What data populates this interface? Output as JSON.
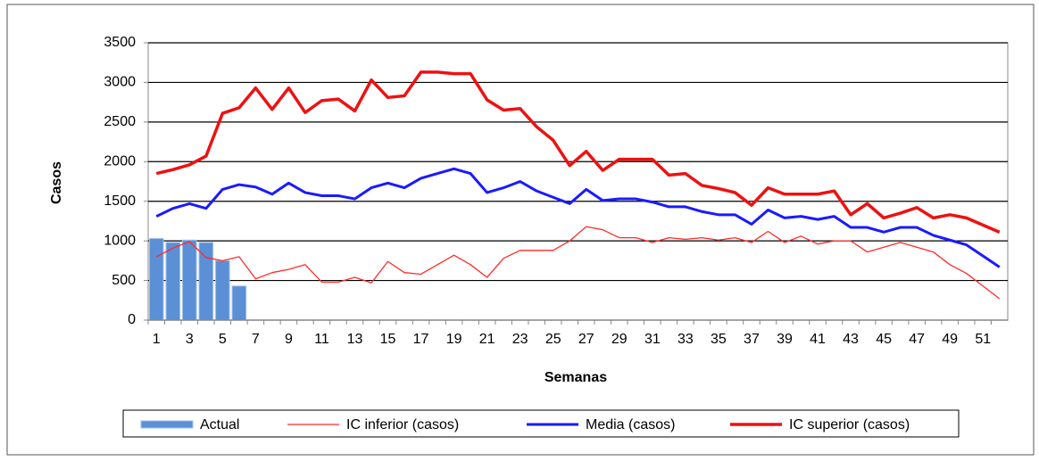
{
  "chart_data": {
    "type": "combo",
    "x_label": "Semanas",
    "y_label": "Casos",
    "categories": [
      "1",
      null,
      "3",
      null,
      "5",
      null,
      "7",
      null,
      "9",
      null,
      "11",
      null,
      "13",
      null,
      "15",
      null,
      "17",
      null,
      "19",
      null,
      "21",
      null,
      "23",
      null,
      "25",
      null,
      "27",
      null,
      "29",
      null,
      "31",
      null,
      "33",
      null,
      "35",
      null,
      "37",
      null,
      "39",
      null,
      "41",
      null,
      "43",
      null,
      "45",
      null,
      "47",
      null,
      "49",
      null,
      "51",
      null
    ],
    "ylim": [
      0,
      3500
    ],
    "yticks": [
      0,
      500,
      1000,
      1500,
      2000,
      2500,
      3000,
      3500
    ],
    "grid": true,
    "legend": "bottom",
    "series": [
      {
        "name": "Actual",
        "type": "bar",
        "color": "#5b8fd6",
        "values": [
          1030,
          980,
          1010,
          980,
          750,
          430,
          null,
          null,
          null,
          null,
          null,
          null,
          null,
          null,
          null,
          null,
          null,
          null,
          null,
          null,
          null,
          null,
          null,
          null,
          null,
          null,
          null,
          null,
          null,
          null,
          null,
          null,
          null,
          null,
          null,
          null,
          null,
          null,
          null,
          null,
          null,
          null,
          null,
          null,
          null,
          null,
          null,
          null,
          null,
          null,
          null,
          null
        ]
      },
      {
        "name": "IC inferior (casos)",
        "type": "line",
        "color": "#ff2a2a",
        "width": 1.3,
        "values": [
          800,
          910,
          990,
          790,
          750,
          800,
          520,
          600,
          640,
          700,
          480,
          480,
          540,
          470,
          740,
          600,
          580,
          700,
          820,
          700,
          540,
          780,
          880,
          880,
          880,
          1000,
          1180,
          1140,
          1040,
          1040,
          980,
          1040,
          1020,
          1040,
          1010,
          1040,
          980,
          1120,
          980,
          1060,
          960,
          1000,
          1000,
          860,
          920,
          980,
          920,
          860,
          700,
          590,
          430,
          270
        ]
      },
      {
        "name": "Media (casos)",
        "type": "line",
        "color": "#1a1aff",
        "width": 3,
        "values": [
          1310,
          1410,
          1470,
          1410,
          1650,
          1710,
          1680,
          1590,
          1730,
          1610,
          1570,
          1570,
          1530,
          1670,
          1730,
          1670,
          1790,
          1850,
          1910,
          1850,
          1610,
          1670,
          1750,
          1630,
          1550,
          1470,
          1650,
          1510,
          1530,
          1530,
          1490,
          1430,
          1430,
          1370,
          1330,
          1330,
          1210,
          1390,
          1290,
          1310,
          1270,
          1310,
          1170,
          1170,
          1110,
          1170,
          1170,
          1070,
          1010,
          950,
          810,
          670
        ]
      },
      {
        "name": "IC superior (casos)",
        "type": "line",
        "color": "#ee1111",
        "width": 3.5,
        "values": [
          1850,
          1900,
          1960,
          2070,
          2610,
          2680,
          2930,
          2660,
          2930,
          2620,
          2770,
          2790,
          2640,
          3030,
          2810,
          2830,
          3130,
          3130,
          3110,
          3110,
          2780,
          2650,
          2670,
          2440,
          2270,
          1950,
          2130,
          1890,
          2030,
          2030,
          2030,
          1830,
          1850,
          1700,
          1660,
          1610,
          1450,
          1670,
          1590,
          1590,
          1590,
          1630,
          1330,
          1470,
          1290,
          1350,
          1420,
          1290,
          1330,
          1290,
          1200,
          1110
        ]
      }
    ]
  }
}
